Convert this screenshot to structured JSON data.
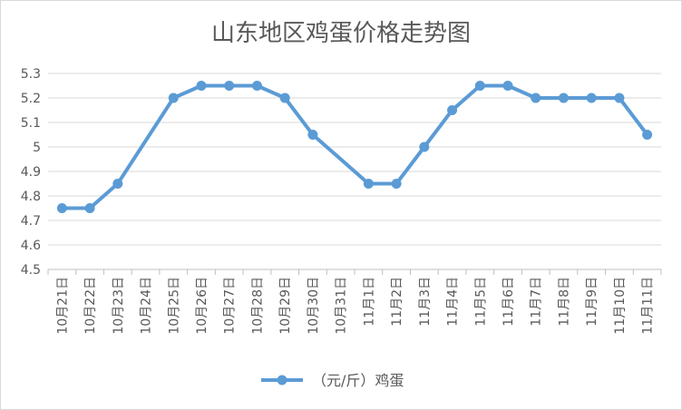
{
  "chart_data": {
    "type": "line",
    "title": "山东地区鸡蛋价格走势图",
    "categories": [
      "10月21日",
      "10月22日",
      "10月23日",
      "10月24日",
      "10月25日",
      "10月26日",
      "10月27日",
      "10月28日",
      "10月29日",
      "10月30日",
      "10月31日",
      "11月1日",
      "11月2日",
      "11月3日",
      "11月4日",
      "11月5日",
      "11月6日",
      "11月7日",
      "11月8日",
      "11月9日",
      "11月10日",
      "11月11日"
    ],
    "series": [
      {
        "name": "（元/斤）鸡蛋",
        "color": "#5B9BD5",
        "values": [
          4.75,
          4.75,
          4.85,
          null,
          5.2,
          5.25,
          5.25,
          5.25,
          5.2,
          5.05,
          null,
          4.85,
          4.85,
          5.0,
          5.15,
          5.25,
          5.25,
          5.2,
          5.2,
          5.2,
          5.2,
          5.05
        ]
      }
    ],
    "ylim": [
      4.5,
      5.3
    ],
    "yticks": [
      "5.3",
      "5.2",
      "5.1",
      "5",
      "4.9",
      "4.8",
      "4.7",
      "4.6",
      "4.5"
    ],
    "grid": true,
    "legend": "bottom"
  }
}
